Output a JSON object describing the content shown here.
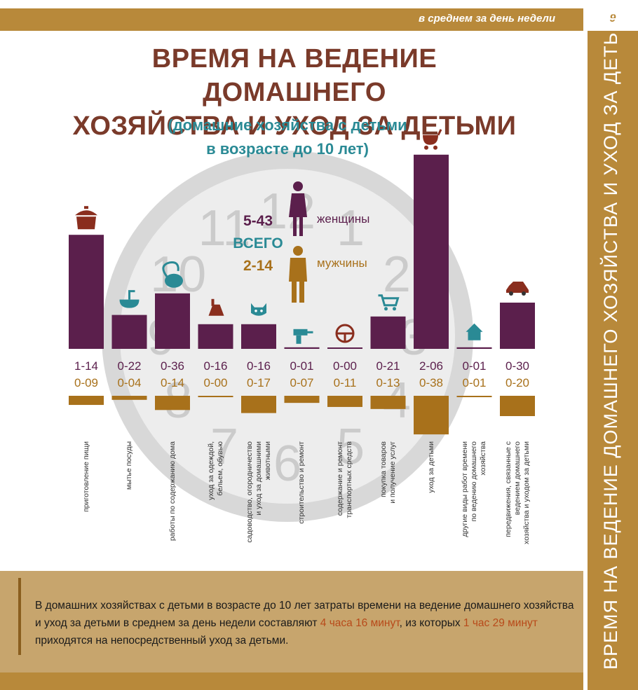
{
  "header": {
    "bar_text": "в среднем за день недели",
    "page_number": "9"
  },
  "side_title": "ВРЕМЯ НА ВЕДЕНИЕ ДОМАШНЕГО ХОЗЯЙСТВА И УХОД ЗА ДЕТЬМИ",
  "title_lines": [
    "ВРЕМЯ НА ВЕДЕНИЕ ДОМАШНЕГО",
    "ХОЗЯЙСТВА И УХОД ЗА ДЕТЬМИ"
  ],
  "subtitle_lines": [
    "(домашние хозяйства с детьми",
    "в возрасте до 10 лет)"
  ],
  "totals": {
    "women_value": "5-43",
    "women_label": "женщины",
    "total_label": "ВСЕГО",
    "men_value": "2-14",
    "men_label": "мужчины"
  },
  "clock_numbers": [
    "12",
    "1",
    "2",
    "3",
    "4",
    "5",
    "6",
    "7",
    "8",
    "9",
    "10",
    "11"
  ],
  "colors": {
    "women": "#5b1f4c",
    "men": "#a8711b",
    "gold": "#b8893a",
    "teal": "#2a8a95",
    "title": "#7a3a2a"
  },
  "chart_data": {
    "type": "bar",
    "units_note": "hours-minutes per day",
    "categories": [
      "приготовление пищи",
      "мытье посуды",
      "работы по содержанию дома",
      "уход за одеждой, бельем, обувью",
      "садоводство, огородничество и уход за домашними животными",
      "строительство и ремонт",
      "содержание и ремонт транспортных средств",
      "покупка товаров и получение услуг",
      "уход за детьми",
      "другие виды работ времени по ведению домашнего хозяйства",
      "передвижения, связанные с ведением домашнего хозяйства и уходом за детьми"
    ],
    "category_lines": [
      [
        "приготовление пищи"
      ],
      [
        "мытье посуды"
      ],
      [
        "работы по содержанию дома"
      ],
      [
        "уход за одеждой,",
        "бельем, обувью"
      ],
      [
        "садоводство, огородничество",
        "и уход за домашними",
        "животными"
      ],
      [
        "строительство и ремонт"
      ],
      [
        "содержание и ремонт",
        "транспортных средств"
      ],
      [
        "покупка товаров",
        "и получение услуг"
      ],
      [
        "уход за детьми"
      ],
      [
        "другие виды работ времени",
        "по ведению домашнего",
        "хозяйства"
      ],
      [
        "передвижения, связанные с",
        "ведением домашнего",
        "хозяйства и уходом за детьми"
      ]
    ],
    "icons": [
      "pot-icon",
      "sink-icon",
      "vacuum-icon",
      "iron-icon",
      "cat-icon",
      "drill-icon",
      "steering-wheel-icon",
      "cart-icon",
      "stroller-icon",
      "house-icon",
      "car-icon"
    ],
    "series": [
      {
        "name": "женщины",
        "labels": [
          "1-14",
          "0-22",
          "0-36",
          "0-16",
          "0-16",
          "0-01",
          "0-00",
          "0-21",
          "2-06",
          "0-01",
          "0-30"
        ],
        "values_minutes": [
          74,
          22,
          36,
          16,
          16,
          1,
          0,
          21,
          126,
          1,
          30
        ]
      },
      {
        "name": "мужчины",
        "labels": [
          "0-09",
          "0-04",
          "0-14",
          "0-00",
          "0-17",
          "0-07",
          "0-11",
          "0-13",
          "0-38",
          "0-01",
          "0-20"
        ],
        "values_minutes": [
          9,
          4,
          14,
          0,
          17,
          7,
          11,
          13,
          38,
          1,
          20
        ]
      }
    ]
  },
  "bottom": {
    "text_part1": "В домашних хозяйствах с детьми в возрасте до 10 лет затраты времени на ведение домашнего хозяйства и уход за детьми в среднем за день недели составляют ",
    "highlight1": "4 часа 16 минут",
    "text_part2": ", из которых ",
    "highlight2": "1 час 29 минут",
    "text_part3": " приходятся на непосредственный уход за детьми."
  }
}
